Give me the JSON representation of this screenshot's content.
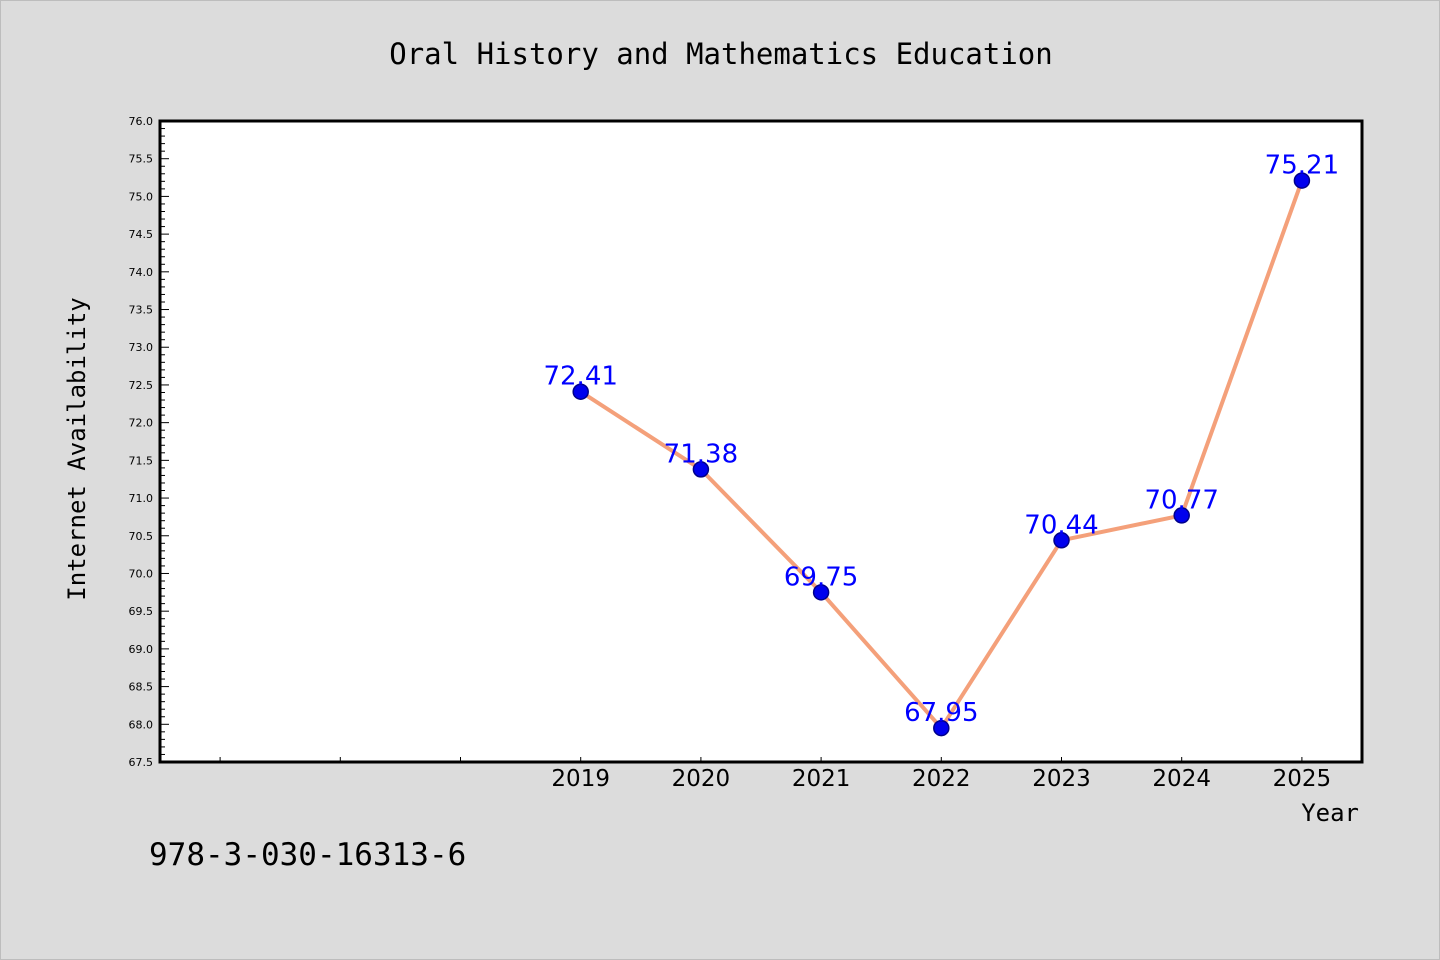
{
  "chart_data": {
    "type": "line",
    "title": "Oral History and Mathematics Education",
    "xlabel": "Year",
    "ylabel": "Internet Availability",
    "x": [
      "2019",
      "2020",
      "2021",
      "2022",
      "2023",
      "2024",
      "2025"
    ],
    "x_axis_range": [
      2015.5,
      2025.5
    ],
    "series": [
      {
        "values": [
          72.41,
          71.38,
          69.75,
          67.95,
          70.44,
          70.77,
          75.21
        ],
        "data_labels": [
          "72.41",
          "71.38",
          "69.75",
          "67.95",
          "70.44",
          "70.77",
          "75.21"
        ]
      }
    ],
    "ylim": [
      67.5,
      76.0
    ],
    "yticks": [
      "67.5",
      "68.0",
      "68.5",
      "69.0",
      "69.5",
      "70.0",
      "70.5",
      "71.0",
      "71.5",
      "72.0",
      "72.5",
      "73.0",
      "73.5",
      "74.0",
      "74.5",
      "75.0",
      "75.5",
      "76.0"
    ],
    "grid": false,
    "legend": "none",
    "annotation": "978-3-030-16313-6"
  },
  "colors": {
    "background": "#dcdcdc",
    "plot_area": "#ffffff",
    "line": "#f4a07a",
    "marker_fill": "#0000ee",
    "marker_edge": "#00008b",
    "data_label": "#0000ff"
  }
}
